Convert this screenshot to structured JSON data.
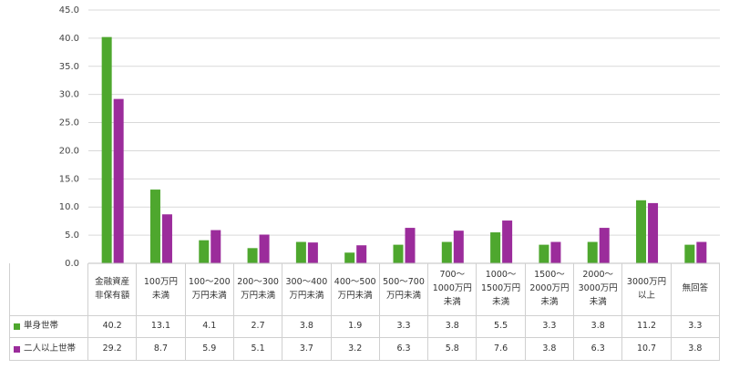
{
  "chart_data": {
    "type": "bar",
    "categories": [
      "金融資産\n非保有額",
      "100万円\n未満",
      "100〜200\n万円未満",
      "200〜300\n万円未満",
      "300〜400\n万円未満",
      "400〜500\n万円未満",
      "500〜700\n万円未満",
      "700〜\n1000万円\n未満",
      "1000〜\n1500万円\n未満",
      "1500〜\n2000万円\n未満",
      "2000〜\n3000万円\n未満",
      "3000万円\n以上",
      "無回答"
    ],
    "series": [
      {
        "name": "単身世帯",
        "color": "#4ea72e",
        "values": [
          40.2,
          13.1,
          4.1,
          2.7,
          3.8,
          1.9,
          3.3,
          3.8,
          5.5,
          3.3,
          3.8,
          11.2,
          3.3
        ]
      },
      {
        "name": "二人以上世帯",
        "color": "#9b2c9b",
        "values": [
          29.2,
          8.7,
          5.9,
          5.1,
          3.7,
          3.2,
          6.3,
          5.8,
          7.6,
          3.8,
          6.3,
          10.7,
          3.8
        ]
      }
    ],
    "ylim": [
      0,
      45
    ],
    "yticks": [
      {
        "value": 0,
        "label": "0.0"
      },
      {
        "value": 5,
        "label": "5.0"
      },
      {
        "value": 10,
        "label": "10.0"
      },
      {
        "value": 15,
        "label": "15.0"
      },
      {
        "value": 20,
        "label": "20.0"
      },
      {
        "value": 25,
        "label": "25.0"
      },
      {
        "value": 30,
        "label": "30.0"
      },
      {
        "value": 35,
        "label": "35.0"
      },
      {
        "value": 40,
        "label": "40.0"
      },
      {
        "value": 45,
        "label": "45.0"
      }
    ],
    "grid": true
  }
}
